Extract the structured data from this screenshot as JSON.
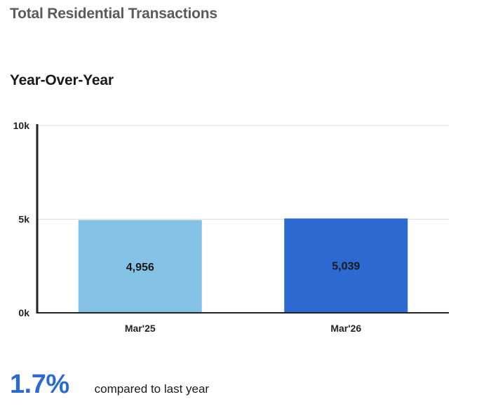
{
  "header": {
    "title": "Total Residential Transactions"
  },
  "section": {
    "title": "Year-Over-Year"
  },
  "chart_data": {
    "type": "bar",
    "categories": [
      "Mar'25",
      "Mar'26"
    ],
    "values": [
      4956,
      5039
    ],
    "value_labels": [
      "4,956",
      "5,039"
    ],
    "colors": [
      "#85c3e6",
      "#2c6ad1"
    ],
    "ylim": [
      0,
      10000
    ],
    "yticks": [
      {
        "value": 0,
        "label": "0k"
      },
      {
        "value": 5000,
        "label": "5k"
      },
      {
        "value": 10000,
        "label": "10k"
      }
    ],
    "grid": true
  },
  "summary": {
    "value": "1.7%",
    "text": "compared to last year",
    "accent_color": "#2c6ad1"
  }
}
